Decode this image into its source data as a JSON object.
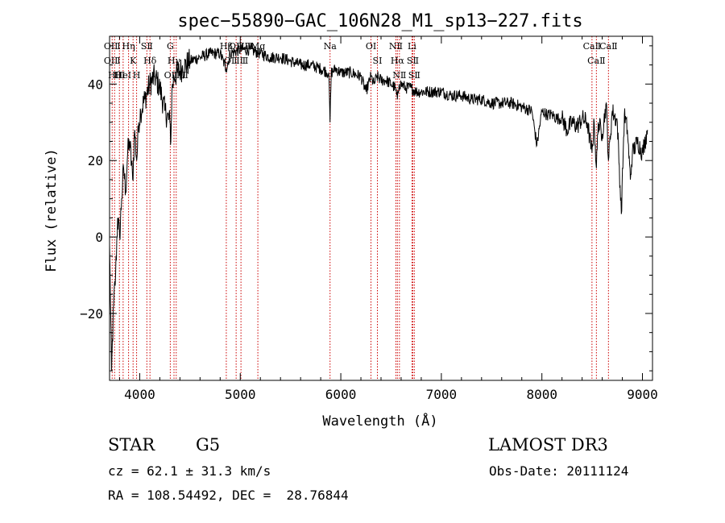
{
  "chart_data": {
    "type": "line",
    "title": "spec−55890−GAC_106N28_M1_sp13−227.fits",
    "xlabel": "Wavelength (Å)",
    "ylabel": "Flux (relative)",
    "xlim": [
      3700,
      9100
    ],
    "ylim": [
      -37.5,
      52.5
    ],
    "xticks": [
      4000,
      5000,
      6000,
      7000,
      8000,
      9000
    ],
    "yticks": [
      -20,
      0,
      20,
      40
    ],
    "grid": false,
    "legend": "none",
    "line_color": "#000000",
    "marker_color": "#cc0000",
    "series": [
      {
        "x": [
          3700,
          3720,
          3740,
          3760,
          3780,
          3800,
          3820,
          3840,
          3860,
          3880,
          3900,
          3930,
          3950,
          3970,
          3990,
          4010,
          4050,
          4100,
          4150,
          4200,
          4250,
          4300,
          4310,
          4320,
          4340,
          4380,
          4420,
          4500,
          4600,
          4700,
          4800,
          4860,
          4900,
          5000,
          5100,
          5200,
          5300,
          5400,
          5500,
          5600,
          5700,
          5800,
          5880,
          5893,
          5905,
          5950,
          6000,
          6100,
          6200,
          6250,
          6300,
          6330,
          6360,
          6400,
          6450,
          6500,
          6540,
          6563,
          6580,
          6600,
          6650,
          6700,
          6750,
          6800,
          6900,
          7000,
          7100,
          7200,
          7300,
          7400,
          7500,
          7600,
          7700,
          7800,
          7900,
          7950,
          8000,
          8050,
          8100,
          8150,
          8200,
          8250,
          8300,
          8350,
          8400,
          8450,
          8498,
          8520,
          8542,
          8560,
          8600,
          8640,
          8662,
          8700,
          8750,
          8790,
          8820,
          8850,
          8880,
          8900,
          8950,
          9000,
          9050
        ],
        "values": [
          -2,
          -35,
          -18,
          -10,
          5,
          0,
          10,
          18,
          12,
          22,
          25,
          15,
          28,
          20,
          30,
          33,
          36,
          40,
          42,
          39,
          33,
          30,
          25,
          38,
          42,
          43,
          44,
          46,
          47,
          48,
          48,
          44,
          48,
          49,
          49,
          48,
          47,
          47,
          46,
          45,
          45,
          44,
          43,
          30,
          43,
          44,
          43,
          43,
          42,
          38,
          42,
          40,
          42,
          41,
          41,
          40,
          39,
          36,
          40,
          40,
          39,
          39,
          38,
          38,
          38,
          38,
          37,
          37,
          36,
          36,
          35,
          35,
          35,
          34,
          33,
          24,
          33,
          32,
          32,
          31,
          31,
          28,
          30,
          29,
          31,
          30,
          22,
          30,
          18,
          30,
          27,
          35,
          20,
          33,
          30,
          6,
          32,
          28,
          15,
          22,
          25,
          22,
          28
        ]
      }
    ],
    "line_markers": [
      {
        "x": 3726,
        "labels": [
          "OⅠⅡ",
          "OⅠⅡ"
        ]
      },
      {
        "x": 3750,
        "labels": [
          "Hθ"
        ]
      },
      {
        "x": 3798,
        "labels": [
          "HⅠ"
        ]
      },
      {
        "x": 3835,
        "labels": [
          "HeⅠ"
        ]
      },
      {
        "x": 3889,
        "labels": [
          "Hη"
        ]
      },
      {
        "x": 3934,
        "labels": [
          "K"
        ]
      },
      {
        "x": 3969,
        "labels": [
          "H"
        ]
      },
      {
        "x": 4071,
        "labels": [
          "SⅡ"
        ]
      },
      {
        "x": 4102,
        "labels": [
          "Hδ"
        ]
      },
      {
        "x": 4304,
        "labels": [
          "G"
        ]
      },
      {
        "x": 4341,
        "labels": [
          "Hγ"
        ]
      },
      {
        "x": 4363,
        "labels": [
          "OⅢⅢ"
        ]
      },
      {
        "x": 4861,
        "labels": [
          "Hβ"
        ]
      },
      {
        "x": 4959,
        "labels": [
          "OⅢⅢ"
        ]
      },
      {
        "x": 5007,
        "labels": [
          "OⅢⅢ"
        ]
      },
      {
        "x": 5175,
        "labels": [
          "Mg"
        ]
      },
      {
        "x": 5893,
        "labels": [
          "Na"
        ]
      },
      {
        "x": 6300,
        "labels": [
          "OⅠ"
        ]
      },
      {
        "x": 6364,
        "labels": [
          "SⅠ"
        ]
      },
      {
        "x": 6548,
        "labels": [
          "NⅡ"
        ]
      },
      {
        "x": 6563,
        "labels": [
          "Hα"
        ]
      },
      {
        "x": 6583,
        "labels": [
          "NⅡ"
        ]
      },
      {
        "x": 6708,
        "labels": [
          "Li"
        ]
      },
      {
        "x": 6716,
        "labels": [
          "SⅡ"
        ]
      },
      {
        "x": 6731,
        "labels": [
          "SⅡ"
        ]
      },
      {
        "x": 8498,
        "labels": [
          "CaⅡ"
        ]
      },
      {
        "x": 8542,
        "labels": [
          "CaⅡ"
        ]
      },
      {
        "x": 8662,
        "labels": [
          "CaⅡ"
        ]
      }
    ]
  },
  "info": {
    "object_class": "STAR",
    "subclass": "G5",
    "survey": "LAMOST DR3",
    "redshift": "cz = 62.1 ± 31.3 km/s",
    "obs_date": "Obs-Date: 20111124",
    "coords": "RA = 108.54492, DEC =  28.76844"
  }
}
